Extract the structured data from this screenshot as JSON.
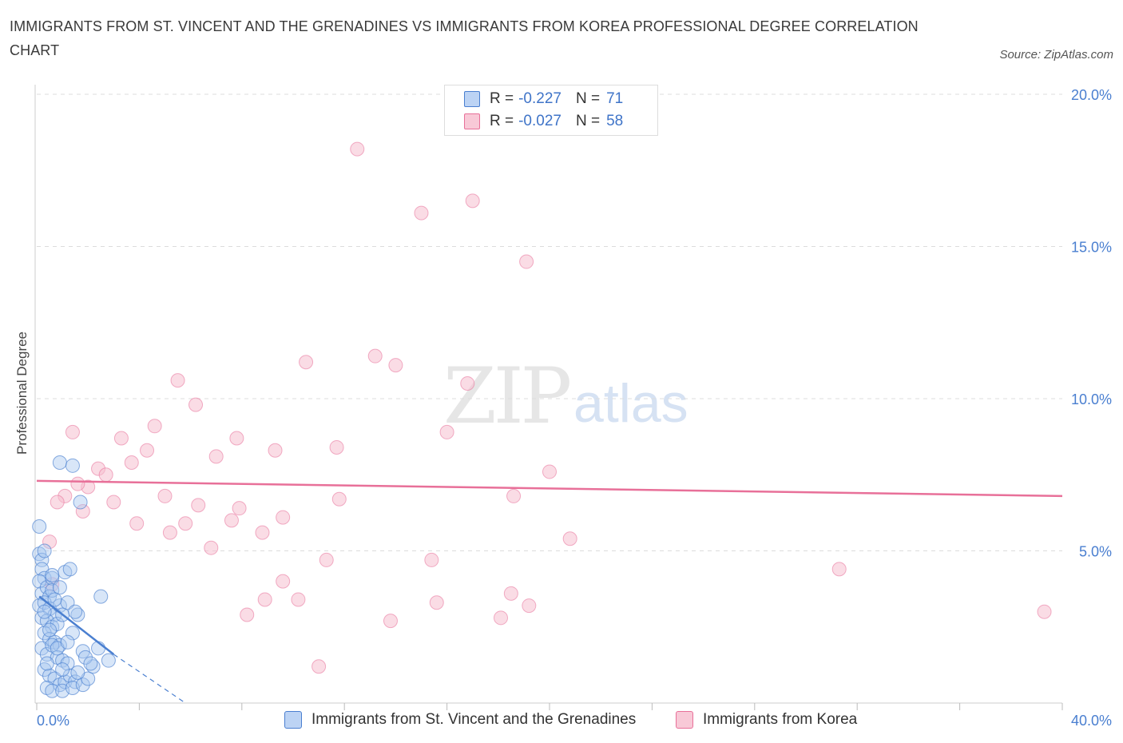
{
  "title": "IMMIGRANTS FROM ST. VINCENT AND THE GRENADINES VS IMMIGRANTS FROM KOREA PROFESSIONAL DEGREE CORRELATION CHART",
  "source": "Source: ZipAtlas.com",
  "watermark": {
    "zip": "ZIP",
    "atlas": "atlas"
  },
  "legend": {
    "rows": [
      {
        "r_label": "R =",
        "r_value": "-0.227",
        "n_label": "N =",
        "n_value": "71"
      },
      {
        "r_label": "R =",
        "r_value": "-0.027",
        "n_label": "N =",
        "n_value": "58"
      }
    ]
  },
  "colors": {
    "blue": "#4a7fd0",
    "blue_fill": "#a9c7f0",
    "pink": "#e87099",
    "pink_fill": "#f6bfd0",
    "axis_text": "#4a7fd0"
  },
  "chart_data": {
    "type": "scatter",
    "title": "IMMIGRANTS FROM ST. VINCENT AND THE GRENADINES VS IMMIGRANTS FROM KOREA PROFESSIONAL DEGREE CORRELATION CHART",
    "xlabel": "",
    "ylabel": "Professional Degree",
    "xlim": [
      0,
      40
    ],
    "ylim": [
      0,
      20
    ],
    "x_tick_labels": [
      "0.0%",
      "40.0%"
    ],
    "y_tick_labels": [
      "5.0%",
      "10.0%",
      "15.0%",
      "20.0%"
    ],
    "y_ticks": [
      5,
      10,
      15,
      20
    ],
    "grid": true,
    "legend_placement": "top-center",
    "series": [
      {
        "name": "Immigrants from St. Vincent and the Grenadines",
        "color": "#4a7fd0",
        "trend": {
          "x": [
            0.1,
            3.0
          ],
          "y": [
            3.5,
            1.6
          ],
          "dashed_to": [
            5.8,
            0.0
          ]
        },
        "points": [
          [
            0.1,
            5.8
          ],
          [
            0.1,
            4.9
          ],
          [
            0.2,
            4.7
          ],
          [
            0.3,
            5.0
          ],
          [
            0.2,
            4.4
          ],
          [
            0.3,
            4.1
          ],
          [
            0.1,
            4.0
          ],
          [
            0.2,
            3.6
          ],
          [
            0.4,
            3.8
          ],
          [
            0.5,
            3.5
          ],
          [
            0.6,
            4.1
          ],
          [
            0.6,
            3.7
          ],
          [
            0.1,
            3.2
          ],
          [
            0.3,
            3.3
          ],
          [
            0.5,
            3.1
          ],
          [
            0.7,
            2.9
          ],
          [
            0.9,
            3.2
          ],
          [
            0.2,
            2.8
          ],
          [
            0.4,
            2.7
          ],
          [
            0.6,
            2.5
          ],
          [
            0.8,
            2.6
          ],
          [
            1.0,
            2.9
          ],
          [
            0.3,
            2.3
          ],
          [
            0.5,
            2.1
          ],
          [
            0.7,
            2.0
          ],
          [
            0.9,
            1.9
          ],
          [
            0.2,
            1.8
          ],
          [
            0.4,
            1.6
          ],
          [
            0.6,
            1.9
          ],
          [
            0.8,
            1.5
          ],
          [
            1.0,
            1.4
          ],
          [
            1.2,
            1.3
          ],
          [
            0.3,
            1.1
          ],
          [
            0.5,
            0.9
          ],
          [
            0.7,
            0.8
          ],
          [
            0.9,
            0.6
          ],
          [
            1.1,
            0.7
          ],
          [
            1.3,
            0.9
          ],
          [
            1.5,
            0.7
          ],
          [
            0.4,
            0.5
          ],
          [
            0.6,
            0.4
          ],
          [
            1.0,
            0.4
          ],
          [
            1.4,
            0.5
          ],
          [
            1.8,
            0.6
          ],
          [
            2.0,
            0.8
          ],
          [
            1.6,
            1.0
          ],
          [
            2.2,
            1.2
          ],
          [
            1.1,
            4.3
          ],
          [
            1.3,
            4.4
          ],
          [
            0.9,
            3.8
          ],
          [
            1.2,
            3.3
          ],
          [
            1.6,
            2.9
          ],
          [
            1.4,
            2.3
          ],
          [
            1.8,
            1.7
          ],
          [
            2.4,
            1.8
          ],
          [
            2.8,
            1.4
          ],
          [
            2.5,
            3.5
          ],
          [
            0.9,
            7.9
          ],
          [
            1.4,
            7.8
          ],
          [
            1.7,
            6.6
          ],
          [
            0.4,
            1.3
          ],
          [
            0.8,
            1.8
          ],
          [
            1.2,
            2.0
          ],
          [
            0.5,
            2.4
          ],
          [
            0.3,
            3.0
          ],
          [
            0.7,
            3.4
          ],
          [
            1.5,
            3.0
          ],
          [
            1.9,
            1.5
          ],
          [
            2.1,
            1.3
          ],
          [
            0.6,
            4.2
          ],
          [
            1.0,
            1.1
          ]
        ]
      },
      {
        "name": "Immigrants from Korea",
        "color": "#e87099",
        "trend": {
          "x": [
            0,
            40
          ],
          "y": [
            7.3,
            6.8
          ]
        },
        "points": [
          [
            12.5,
            18.2
          ],
          [
            15.0,
            16.1
          ],
          [
            17.0,
            16.5
          ],
          [
            19.1,
            14.5
          ],
          [
            10.5,
            11.2
          ],
          [
            13.2,
            11.4
          ],
          [
            14.0,
            11.1
          ],
          [
            5.5,
            10.6
          ],
          [
            6.2,
            9.8
          ],
          [
            16.8,
            10.5
          ],
          [
            4.6,
            9.1
          ],
          [
            1.4,
            8.9
          ],
          [
            3.3,
            8.7
          ],
          [
            7.8,
            8.7
          ],
          [
            4.3,
            8.3
          ],
          [
            11.7,
            8.4
          ],
          [
            16.0,
            8.9
          ],
          [
            7.0,
            8.1
          ],
          [
            9.3,
            8.3
          ],
          [
            2.4,
            7.7
          ],
          [
            2.7,
            7.5
          ],
          [
            3.7,
            7.9
          ],
          [
            20.0,
            7.6
          ],
          [
            2.0,
            7.1
          ],
          [
            1.1,
            6.8
          ],
          [
            0.8,
            6.6
          ],
          [
            5.0,
            6.8
          ],
          [
            3.0,
            6.6
          ],
          [
            6.3,
            6.5
          ],
          [
            7.9,
            6.4
          ],
          [
            11.8,
            6.7
          ],
          [
            18.6,
            6.8
          ],
          [
            1.8,
            6.3
          ],
          [
            3.9,
            5.9
          ],
          [
            5.8,
            5.9
          ],
          [
            7.6,
            6.0
          ],
          [
            9.6,
            6.1
          ],
          [
            5.2,
            5.6
          ],
          [
            8.8,
            5.6
          ],
          [
            6.8,
            5.1
          ],
          [
            0.5,
            5.3
          ],
          [
            11.3,
            4.7
          ],
          [
            15.4,
            4.7
          ],
          [
            20.8,
            5.4
          ],
          [
            31.3,
            4.4
          ],
          [
            9.6,
            4.0
          ],
          [
            8.9,
            3.4
          ],
          [
            10.2,
            3.4
          ],
          [
            15.6,
            3.3
          ],
          [
            18.5,
            3.6
          ],
          [
            19.2,
            3.2
          ],
          [
            8.2,
            2.9
          ],
          [
            13.8,
            2.7
          ],
          [
            18.1,
            2.8
          ],
          [
            39.3,
            3.0
          ],
          [
            11.0,
            1.2
          ],
          [
            0.6,
            3.9
          ],
          [
            1.6,
            7.2
          ]
        ]
      }
    ]
  },
  "bottom_legend": {
    "blue_label": "Immigrants from St. Vincent and the Grenadines",
    "pink_label": "Immigrants from Korea"
  }
}
